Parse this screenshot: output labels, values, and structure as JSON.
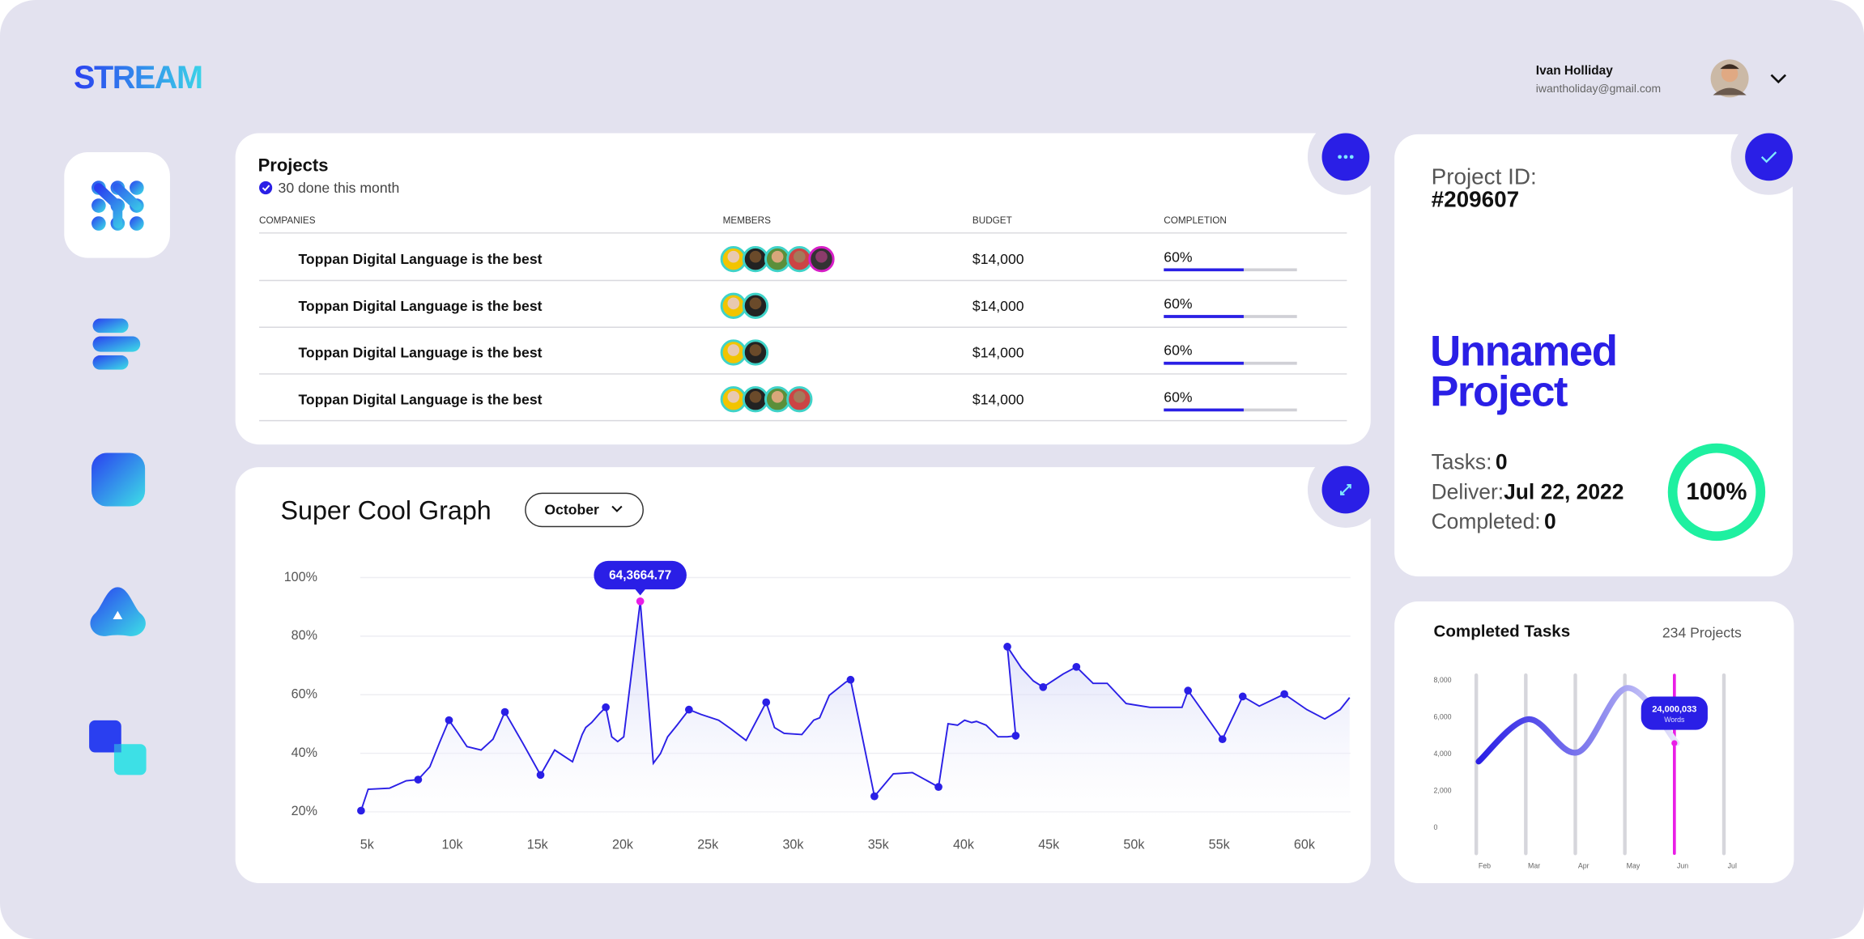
{
  "brand": "STREAM",
  "user": {
    "name": "Ivan Holliday",
    "email": "iwantholiday@gmail.com"
  },
  "projects": {
    "title": "Projects",
    "subtitle": "30 done this month",
    "columns": [
      "COMPANIES",
      "MEMBERS",
      "BUDGET",
      "COMPLETION"
    ],
    "rows": [
      {
        "company": "Toppan Digital Language is the best",
        "members": 5,
        "budget": "$14,000",
        "completion": 60,
        "completion_label": "60%"
      },
      {
        "company": "Toppan Digital Language is the best",
        "members": 2,
        "budget": "$14,000",
        "completion": 60,
        "completion_label": "60%"
      },
      {
        "company": "Toppan Digital Language is the best",
        "members": 2,
        "budget": "$14,000",
        "completion": 60,
        "completion_label": "60%"
      },
      {
        "company": "Toppan Digital Language is the best",
        "members": 4,
        "budget": "$14,000",
        "completion": 60,
        "completion_label": "60%"
      }
    ]
  },
  "graph": {
    "title": "Super Cool Graph",
    "month": "October"
  },
  "project_card": {
    "id_label": "Project ID:",
    "id": "#209607",
    "name": [
      "Unnamed",
      "Project"
    ],
    "tasks_label": "Tasks:",
    "tasks": "0",
    "deliver_label": "Deliver:",
    "deliver": "Jul 22, 2022",
    "completed_label": "Completed:",
    "completed": "0",
    "progress": 100,
    "progress_label": "100%"
  },
  "tasks_card": {
    "title": "Completed Tasks",
    "count": "234 Projects"
  },
  "chart_data": [
    {
      "type": "line",
      "color": "#2a1fe6",
      "highlight_color": "#e91ee6",
      "annotation": "64,3664.77",
      "grid": true,
      "x": [
        4650,
        5070,
        6320,
        7300,
        8000,
        8690,
        9250,
        9810,
        10300,
        10860,
        11690,
        12390,
        13090,
        14130,
        15180,
        16010,
        17060,
        17620,
        17830,
        18180,
        18660,
        19010,
        19360,
        19710,
        20060,
        21030,
        21800,
        22220,
        22640,
        23190,
        23890,
        24590,
        25630,
        26330,
        27240,
        28420,
        28910,
        29470,
        30510,
        31210,
        31560,
        32120,
        33090,
        33370,
        34770,
        35880,
        37000,
        38530,
        39090,
        39650,
        40060,
        40480,
        40760,
        41320,
        42020,
        42570,
        43060,
        42570,
        43400,
        44100,
        44670,
        45850,
        46620,
        47600,
        48430,
        49540,
        50940,
        52820,
        53170,
        55190,
        56380,
        57350,
        58820,
        60140,
        61190,
        62090,
        62650
      ],
      "values": [
        20.4,
        27.7,
        28.1,
        30.6,
        31.0,
        35.4,
        43.6,
        51.3,
        47.2,
        42.3,
        41.1,
        44.8,
        54.1,
        43.6,
        32.6,
        41.1,
        37.1,
        46.4,
        48.8,
        50.5,
        53.7,
        55.7,
        45.6,
        44.0,
        45.6,
        91.9,
        36.6,
        39.9,
        45.6,
        49.6,
        54.9,
        53.3,
        51.3,
        48.4,
        44.4,
        57.4,
        48.8,
        46.8,
        46.4,
        51.3,
        52.1,
        59.8,
        64.3,
        65.1,
        25.3,
        33.0,
        33.4,
        28.5,
        50.1,
        49.6,
        51.3,
        50.5,
        50.9,
        49.6,
        45.6,
        45.6,
        46.0,
        76.4,
        69.1,
        64.7,
        62.6,
        67.1,
        69.5,
        63.9,
        63.9,
        57.0,
        55.7,
        55.7,
        61.4,
        44.8,
        59.4,
        56.1,
        60.2,
        54.9,
        51.7,
        54.9,
        59.0
      ],
      "marker_colors": [
        "#2a1fe6",
        null,
        null,
        null,
        "#2a1fe6",
        null,
        null,
        "#2a1fe6",
        null,
        null,
        null,
        null,
        "#2a1fe6",
        null,
        "#2a1fe6",
        null,
        null,
        null,
        null,
        null,
        null,
        "#2a1fe6",
        null,
        null,
        null,
        "#e91ee6",
        null,
        null,
        null,
        null,
        "#2a1fe6",
        null,
        null,
        null,
        null,
        "#2a1fe6",
        null,
        null,
        null,
        null,
        null,
        null,
        null,
        "#2a1fe6",
        "#2a1fe6",
        null,
        null,
        "#2a1fe6",
        null,
        null,
        null,
        null,
        null,
        null,
        null,
        null,
        "#2a1fe6",
        "#2a1fe6",
        null,
        null,
        "#2a1fe6",
        null,
        "#2a1fe6",
        null,
        null,
        null,
        null,
        null,
        "#2a1fe6",
        "#2a1fe6",
        "#2a1fe6",
        null,
        "#2a1fe6",
        null,
        null,
        null,
        null
      ],
      "xlim": [
        4600,
        62700
      ],
      "ylim": [
        17,
        102
      ],
      "xticks": [
        {
          "value": 5000,
          "label": "5k"
        },
        {
          "value": 10000,
          "label": "10k"
        },
        {
          "value": 15000,
          "label": "15k"
        },
        {
          "value": 20000,
          "label": "20k"
        },
        {
          "value": 25000,
          "label": "25k"
        },
        {
          "value": 30000,
          "label": "30k"
        },
        {
          "value": 35000,
          "label": "35k"
        },
        {
          "value": 40000,
          "label": "40k"
        },
        {
          "value": 45000,
          "label": "45k"
        },
        {
          "value": 50000,
          "label": "50k"
        },
        {
          "value": 55000,
          "label": "55k"
        },
        {
          "value": 60000,
          "label": "60k"
        }
      ],
      "yticks": [
        {
          "value": 20,
          "label": "20%"
        },
        {
          "value": 40,
          "label": "40%"
        },
        {
          "value": 60,
          "label": "60%"
        },
        {
          "value": 80,
          "label": "80%"
        },
        {
          "value": 100,
          "label": "100%"
        }
      ]
    },
    {
      "type": "line",
      "color": "#2a1fe6",
      "categories": [
        "Feb",
        "Mar",
        "Apr",
        "May",
        "Jun",
        "Jul"
      ],
      "values": [
        3600,
        5900,
        4100,
        7600,
        4600,
        null
      ],
      "bar_colors": [
        "#d6d6dc",
        "#d6d6dc",
        "#d6d6dc",
        "#d6d6dc",
        "#e91ee6",
        "#d6d6dc"
      ],
      "annotation": [
        "24,000,033",
        "Words"
      ],
      "ylim": [
        -1400,
        8300
      ],
      "yticks": [
        0,
        {
          "value": 2000,
          "label": "2,000"
        },
        {
          "value": 4000,
          "label": "4,000"
        },
        {
          "value": 6000,
          "label": "6,000"
        },
        {
          "value": 8000,
          "label": "8,000"
        }
      ]
    }
  ]
}
